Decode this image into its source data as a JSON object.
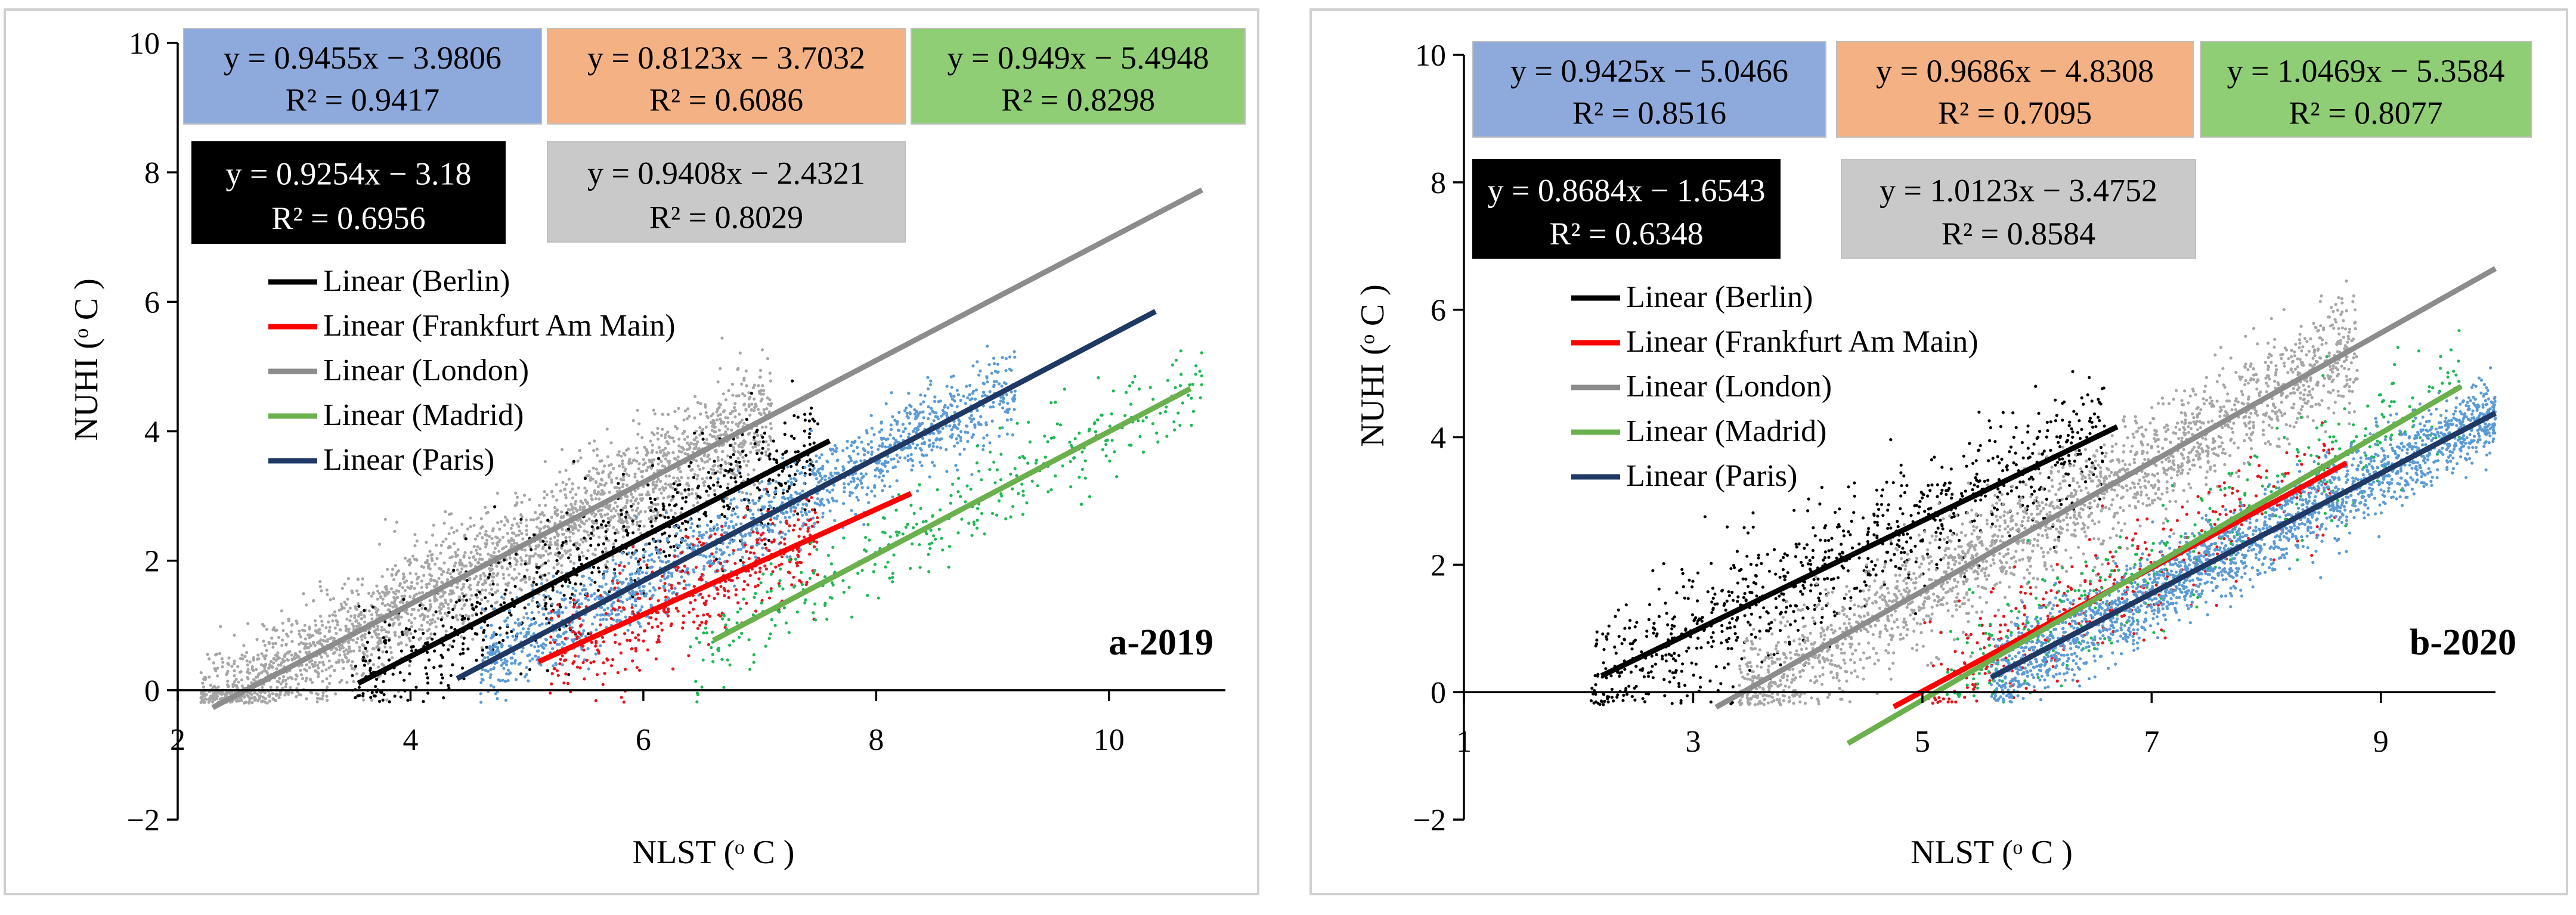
{
  "chart_data": [
    {
      "type": "scatter",
      "panel_label": "a-2019",
      "xlabel": "NLST (ᵒ C )",
      "ylabel": "NUHI (ᵒ C )",
      "xlim": [
        2,
        11
      ],
      "ylim": [
        -2,
        10
      ],
      "xticks": [
        2,
        4,
        6,
        8,
        10
      ],
      "yticks": [
        -2,
        0,
        2,
        4,
        6,
        8,
        10
      ],
      "x_tick_labels": [
        "2",
        "4",
        "6",
        "8",
        "10"
      ],
      "y_tick_labels": [
        "−2",
        "0",
        "2",
        "4",
        "6",
        "8",
        "10"
      ],
      "legend_position": "center-left",
      "series": [
        {
          "name": "Linear (Berlin)",
          "key": "berlin",
          "slope": 0.9254,
          "intercept": -3.18,
          "x_range": [
            3.55,
            7.6
          ],
          "equation": "y = 0.9254x − 3.18",
          "r2": "R² = 0.6956"
        },
        {
          "name": "Linear (Frankfurt Am Main)",
          "key": "frankfurt",
          "slope": 0.8123,
          "intercept": -3.7032,
          "x_range": [
            5.1,
            8.3
          ],
          "equation": "y = 0.8123x − 3.7032",
          "r2": "R² = 0.6086"
        },
        {
          "name": "Linear (London)",
          "key": "london",
          "slope": 0.9408,
          "intercept": -2.4321,
          "x_range": [
            2.3,
            10.8
          ],
          "equation": "y = 0.9408x − 2.4321",
          "r2": "R² = 0.8029"
        },
        {
          "name": "Linear (Madrid)",
          "key": "madrid",
          "slope": 0.949,
          "intercept": -5.4948,
          "x_range": [
            6.6,
            10.7
          ],
          "equation": "y = 0.949x − 5.4948",
          "r2": "R² = 0.8298"
        },
        {
          "name": "Linear (Paris)",
          "key": "paris",
          "slope": 0.9455,
          "intercept": -3.9806,
          "x_range": [
            4.4,
            10.4
          ],
          "equation": "y = 0.9455x − 3.9806",
          "r2": "R² = 0.9417"
        }
      ]
    },
    {
      "type": "scatter",
      "panel_label": "b-2020",
      "xlabel": "NLST (ᵒ C )",
      "ylabel": "NUHI (ᵒ C )",
      "xlim": [
        1,
        10
      ],
      "ylim": [
        -2,
        10
      ],
      "xticks": [
        1,
        3,
        5,
        7,
        9
      ],
      "yticks": [
        -2,
        0,
        2,
        4,
        6,
        8,
        10
      ],
      "x_tick_labels": [
        "1",
        "3",
        "5",
        "7",
        "9"
      ],
      "y_tick_labels": [
        "−2",
        "0",
        "2",
        "4",
        "6",
        "8",
        "10"
      ],
      "legend_position": "center-left",
      "series": [
        {
          "name": "Linear (Berlin)",
          "key": "berlin",
          "slope": 0.8684,
          "intercept": -1.6543,
          "x_range": [
            2.2,
            6.7
          ],
          "equation": "y = 0.8684x − 1.6543",
          "r2": "R² = 0.6348"
        },
        {
          "name": "Linear (Frankfurt Am Main)",
          "key": "frankfurt",
          "slope": 0.9686,
          "intercept": -4.8308,
          "x_range": [
            4.75,
            8.7
          ],
          "equation": "y = 0.9686x − 4.8308",
          "r2": "R² = 0.7095"
        },
        {
          "name": "Linear (London)",
          "key": "london",
          "slope": 1.0123,
          "intercept": -3.4752,
          "x_range": [
            3.2,
            10
          ],
          "equation": "y = 1.0123x − 3.4752",
          "r2": "R² = 0.8584"
        },
        {
          "name": "Linear (Madrid)",
          "key": "madrid",
          "slope": 1.0469,
          "intercept": -5.3584,
          "x_range": [
            4.35,
            9.7
          ],
          "equation": "y = 1.0469x − 5.3584",
          "r2": "R² = 0.8077"
        },
        {
          "name": "Linear (Paris)",
          "key": "paris",
          "slope": 0.9425,
          "intercept": -5.0466,
          "x_range": [
            5.6,
            10
          ],
          "equation": "y = 0.9425x − 5.0466",
          "r2": "R² = 0.8516"
        }
      ]
    }
  ],
  "colors": {
    "berlin_line": "#000000",
    "berlin_dots": "#000000",
    "frankfurt_line": "#ff0000",
    "frankfurt_dots": "#e8141c",
    "london_line": "#8c8c8c",
    "london_dots": "#a6a6a6",
    "madrid_line": "#6ab04c",
    "madrid_dots": "#1db954",
    "paris_line": "#1f3864",
    "paris_dots": "#5b9bd5",
    "box_paris": "#8ea9db",
    "box_frankfurt": "#f4b183",
    "box_madrid": "#8fce74",
    "box_berlin": "#000000",
    "box_london": "#c9c9c9"
  }
}
